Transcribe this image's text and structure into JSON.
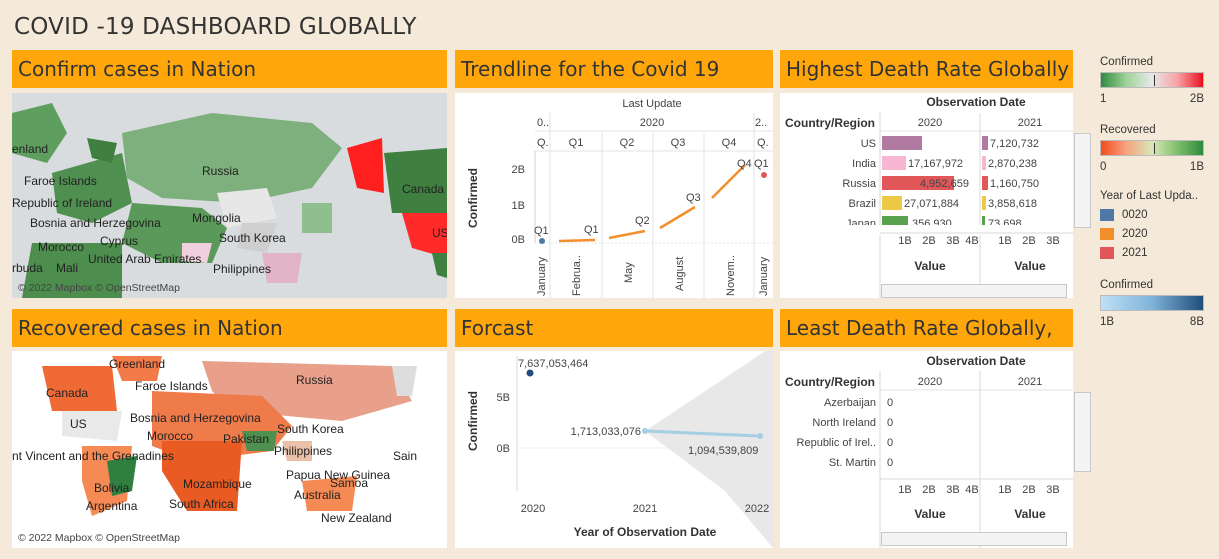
{
  "dashboard_title": "COVID -19 DASHBOARD GLOBALLY",
  "panels": {
    "confirm_map": {
      "header": "Confirm cases in Nation",
      "copyright": "© 2022 Mapbox © OpenStreetMap",
      "labels": [
        "Russia",
        "enland",
        "Faroe Islands",
        "Republic of Ireland",
        "Canada",
        "Bosnia and Herzegovina",
        "Mongolia",
        "Cyprus",
        "South Korea",
        "Morocco",
        "United Arab Emirates",
        "rbuda",
        "Mali",
        "Philippines",
        "US"
      ]
    },
    "recovered_map": {
      "header": "Recovered cases in Nation",
      "copyright": "© 2022 Mapbox © OpenStreetMap",
      "labels": [
        "Greenland",
        "Faroe Islands",
        "Russia",
        "Canada",
        "Bosnia and Herzegovina",
        "US",
        "Morocco",
        "Pakistan",
        "South Korea",
        "Philippines",
        "nt Vincent and the Grenadines",
        "Papua New Guinea",
        "Sain",
        "Bolivia",
        "Mozambique",
        "Samoa",
        "Argentina",
        "South Africa",
        "Australia",
        "New Zealand"
      ]
    },
    "trendline": {
      "header": "Trendline for the Covid 19",
      "top_label": "Last Update",
      "year_labels": [
        "0..",
        "2020",
        "2.."
      ],
      "quarter_labels": [
        "Q.",
        "Q1",
        "Q2",
        "Q3",
        "Q4",
        "Q."
      ],
      "month_labels": [
        "January",
        "Februa..",
        "May",
        "August",
        "Novem..",
        "January"
      ],
      "y_title": "Confirmed",
      "y_ticks": [
        "2B",
        "1B",
        "0B"
      ],
      "point_labels": [
        "Q1",
        "Q1",
        "Q2",
        "Q3",
        "Q4",
        "Q1"
      ]
    },
    "forecast": {
      "header": "Forcast",
      "y_title": "Confirmed",
      "x_title": "Year of Observation Date",
      "y_ticks": [
        "5B",
        "0B"
      ],
      "x_ticks": [
        "2020",
        "2021",
        "2022"
      ],
      "value_labels": [
        "7,637,053,464",
        "1,713,033,076",
        "1,094,539,809"
      ]
    },
    "highest": {
      "header": "Highest Death Rate Globally",
      "col_header": "Observation Date",
      "row_header": "Country/Region",
      "years": [
        "2020",
        "2021"
      ],
      "countries": [
        "US",
        "India",
        "Russia",
        "Brazil",
        "Japan"
      ],
      "values_2020": [
        "",
        "17,167,972",
        "4,952,659",
        "27,071,884",
        "356,930"
      ],
      "values_2021": [
        "7,120,732",
        "2,870,238",
        "1,160,750",
        "3,858,618",
        "73,698"
      ],
      "axis_ticks_2020": [
        "1B",
        "2B",
        "3B",
        "4B"
      ],
      "axis_ticks_2021": [
        "1B",
        "2B",
        "3B"
      ],
      "axis_title": "Value"
    },
    "least": {
      "header": "Least Death Rate Globally,",
      "col_header": "Observation Date",
      "row_header": "Country/Region",
      "years": [
        "2020",
        "2021"
      ],
      "countries": [
        "Azerbaijan",
        "North Ireland",
        "Republic of Irel..",
        "St. Martin"
      ],
      "values_2020": [
        "0",
        "0",
        "0",
        "0"
      ],
      "axis_ticks_2020": [
        "1B",
        "2B",
        "3B",
        "4B"
      ],
      "axis_ticks_2021": [
        "1B",
        "2B",
        "3B"
      ],
      "axis_title": "Value"
    }
  },
  "legends": {
    "confirmed": {
      "title": "Confirmed",
      "min": "1",
      "max": "2B"
    },
    "recovered": {
      "title": "Recovered",
      "min": "0",
      "max": "1B"
    },
    "year": {
      "title": "Year of Last Upda..",
      "items": [
        {
          "label": "0020",
          "color": "#4e79a7"
        },
        {
          "label": "2020",
          "color": "#f28e2b"
        },
        {
          "label": "2021",
          "color": "#e15759"
        }
      ]
    },
    "confirmed_blue": {
      "title": "Confirmed",
      "min": "1B",
      "max": "8B"
    }
  },
  "colors": {
    "header_bg": "#ffa70a",
    "trend_line": "#f28e2b",
    "forecast_line": "#a6cee3",
    "us_bar": "#b07aa1",
    "india_bar": "#f7b6d2",
    "russia_bar": "#e15759",
    "brazil_bar": "#edc948",
    "japan_bar": "#59a14f"
  }
}
